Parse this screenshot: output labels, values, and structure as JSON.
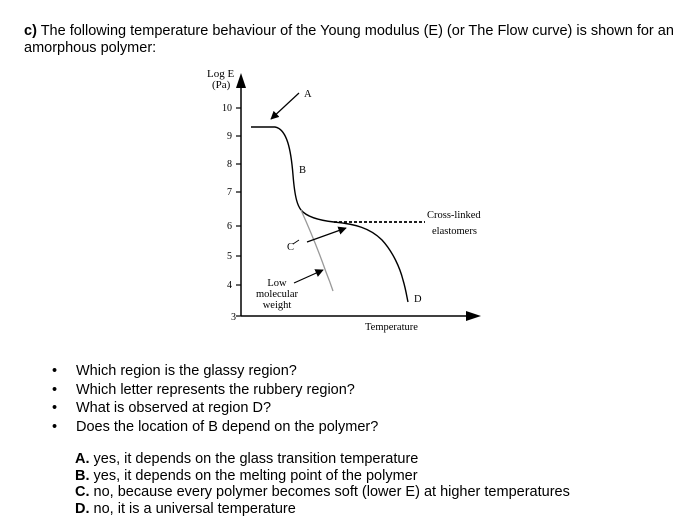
{
  "intro": {
    "part_label": "c)",
    "text": "The following temperature behaviour of the Young modulus (E) (or The Flow curve) is shown for an amorphous polymer:"
  },
  "figure": {
    "y_axis_label_line1": "Log E",
    "y_axis_label_line2": "(Pa)",
    "x_axis_label": "Temperature",
    "y_ticks": [
      "10",
      "9",
      "8",
      "7",
      "6",
      "5",
      "4",
      "3"
    ],
    "labels": {
      "A": "A",
      "B": "B",
      "C": "C",
      "D": "D",
      "crosslinked_line1": "Cross-linked",
      "crosslinked_line2": "elastomers",
      "low_mw_line1": "Low",
      "low_mw_line2": "molecular",
      "low_mw_line3": "weight"
    }
  },
  "questions": [
    "Which region is the glassy region?",
    "Which letter represents the rubbery region?",
    "What is observed at region D?",
    "Does the location of B depend on the polymer?"
  ],
  "answers": [
    {
      "letter": "A.",
      "text": "yes, it depends on the glass transition temperature"
    },
    {
      "letter": "B.",
      "text": "yes, it depends on the melting point of the polymer"
    },
    {
      "letter": "C.",
      "text": "no, because every polymer becomes soft (lower E) at higher temperatures"
    },
    {
      "letter": "D.",
      "text": "no, it is a universal temperature"
    }
  ]
}
